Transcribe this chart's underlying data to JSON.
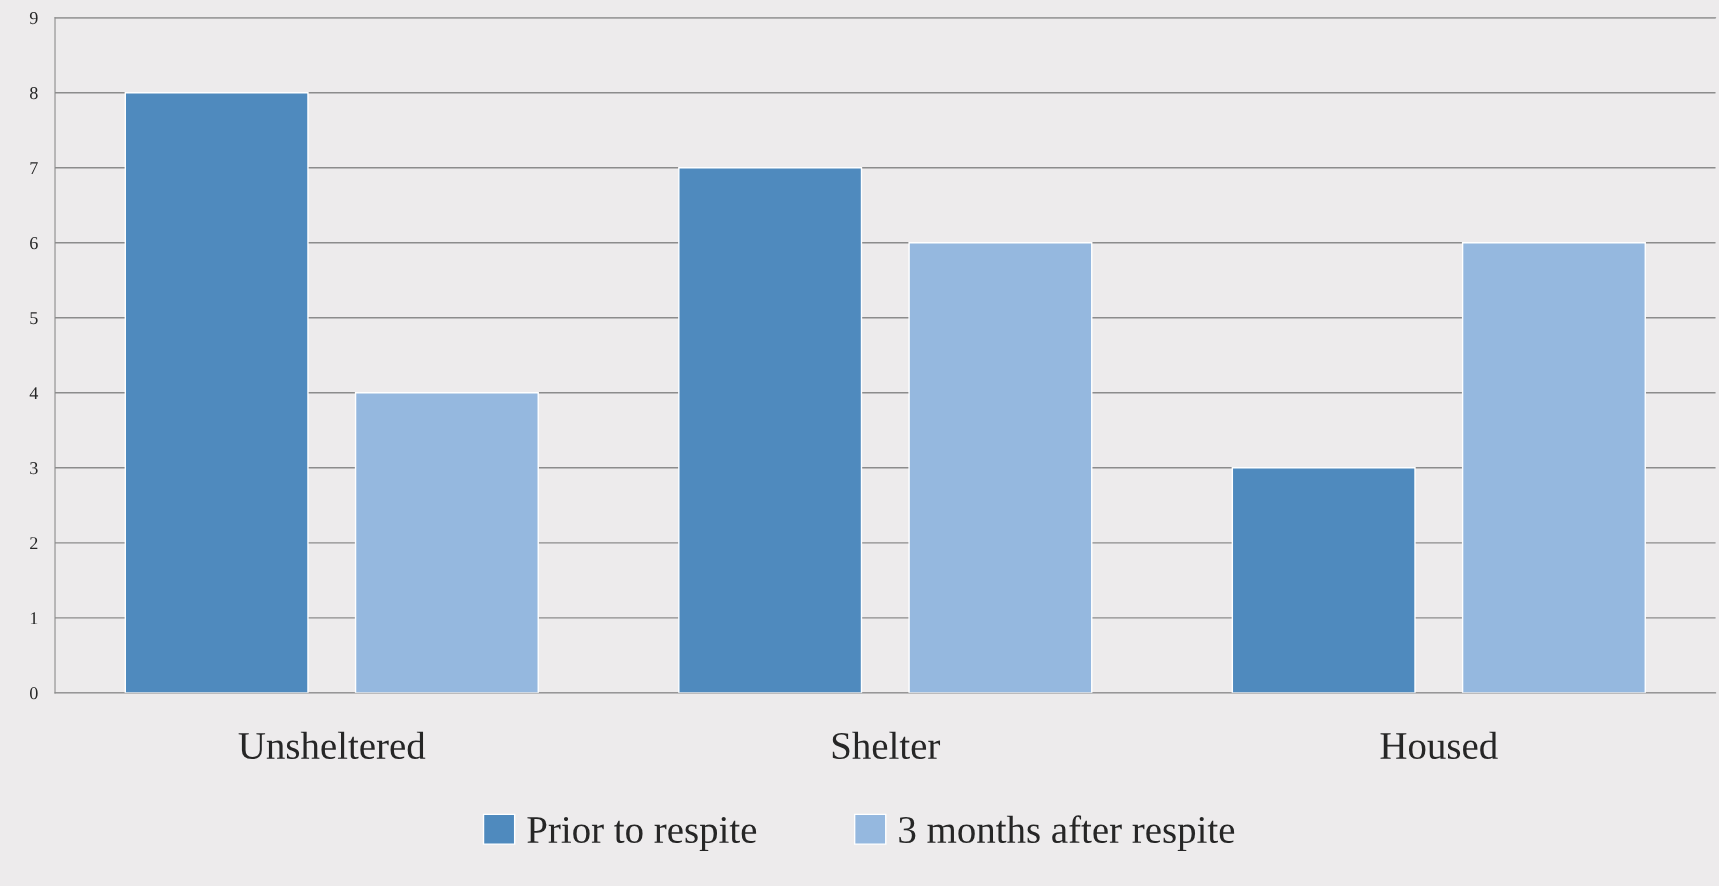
{
  "chart_data": {
    "type": "bar",
    "categories": [
      "Unsheltered",
      "Shelter",
      "Housed"
    ],
    "series": [
      {
        "name": "Prior to respite",
        "color": "#4f8abe",
        "values": [
          8,
          7,
          3
        ]
      },
      {
        "name": "3 months after respite",
        "color": "#95b8df",
        "values": [
          4,
          6,
          6
        ]
      }
    ],
    "ylim": [
      0,
      9
    ],
    "yticks": [
      0,
      1,
      2,
      3,
      4,
      5,
      6,
      7,
      8,
      9
    ],
    "grid": "y",
    "legend": "bottom"
  }
}
